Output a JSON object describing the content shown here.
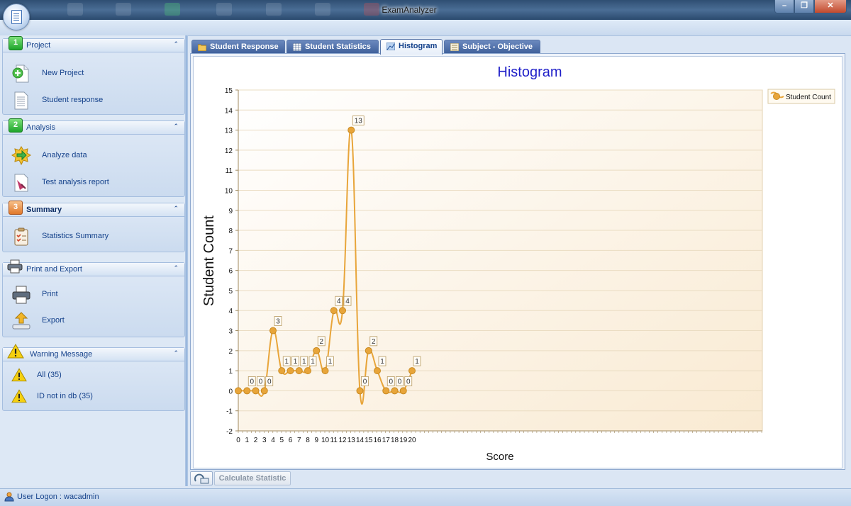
{
  "window": {
    "title": "ExamAnalyzer"
  },
  "sidebar": {
    "groups": [
      {
        "number": "1",
        "label": "Project",
        "items": [
          {
            "label": "New Project",
            "icon": "new-project-icon"
          },
          {
            "label": "Student response",
            "icon": "document-icon"
          }
        ]
      },
      {
        "number": "2",
        "label": "Analysis",
        "items": [
          {
            "label": "Analyze data",
            "icon": "analyze-gear-icon"
          },
          {
            "label": "Test analysis report",
            "icon": "report-icon"
          }
        ]
      },
      {
        "number": "3",
        "label": "Summary",
        "items": [
          {
            "label": "Statistics Summary",
            "icon": "clipboard-icon"
          }
        ]
      },
      {
        "label": "Print and Export",
        "icon": "printer-icon",
        "items": [
          {
            "label": "Print",
            "icon": "printer-icon"
          },
          {
            "label": "Export",
            "icon": "export-icon"
          }
        ]
      },
      {
        "label": "Warning Message",
        "icon": "warning-icon",
        "items": [
          {
            "label": "All (35)",
            "icon": "warning-icon"
          },
          {
            "label": "ID not in db (35)",
            "icon": "warning-icon"
          }
        ]
      }
    ]
  },
  "tabs": [
    {
      "label": "Student Response",
      "active": false
    },
    {
      "label": "Student Statistics",
      "active": false
    },
    {
      "label": "Histogram",
      "active": true
    },
    {
      "label": "Subject - Objective",
      "active": false
    }
  ],
  "chart_data": {
    "type": "line",
    "title": "Histogram",
    "xlabel": "Score",
    "ylabel": "Student Count",
    "x": [
      0,
      1,
      2,
      3,
      4,
      5,
      6,
      7,
      8,
      9,
      10,
      11,
      12,
      13,
      14,
      15,
      16,
      17,
      18,
      19,
      20
    ],
    "series": [
      {
        "name": "Student Count",
        "color": "#e8a53a",
        "values": [
          0,
          0,
          0,
          0,
          3,
          1,
          1,
          1,
          1,
          2,
          1,
          4,
          4,
          13,
          0,
          2,
          1,
          0,
          0,
          0,
          1
        ]
      }
    ],
    "ylim": [
      -2,
      15
    ],
    "yticks": [
      -2,
      -1,
      0,
      1,
      2,
      3,
      4,
      5,
      6,
      7,
      8,
      9,
      10,
      11,
      12,
      13,
      14,
      15
    ],
    "data_labels_shown_for_x": [
      1,
      2,
      3,
      4,
      5,
      6,
      7,
      8,
      9,
      10,
      11,
      12,
      13,
      14,
      15,
      16,
      17,
      18,
      19,
      20
    ],
    "legend_position": "top-right",
    "grid": true,
    "smooth": true
  },
  "bottom": {
    "calculate_label": "Calculate Statistic"
  },
  "status": {
    "user_logon": "User Logon : wacadmin"
  }
}
